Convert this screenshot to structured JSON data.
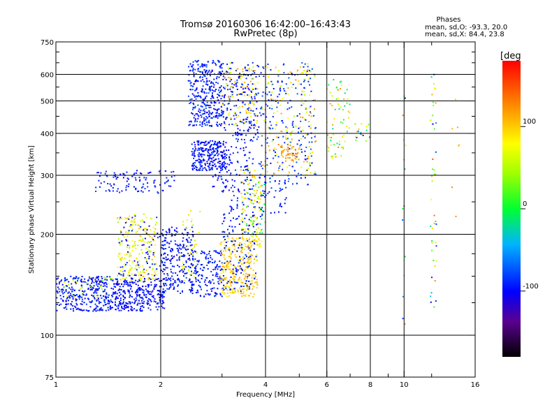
{
  "chart_data": {
    "type": "scatter",
    "title": "Tromsø 20160306 16:42:00–16:43:43",
    "subtitle": "RwPretec (8p)",
    "xlabel": "Frequency [MHz]",
    "ylabel": "Stationary phase Virtual Height [km]",
    "x_scale": "log",
    "y_scale": "log",
    "xlim": [
      1,
      16
    ],
    "ylim": [
      75,
      750
    ],
    "x_ticks": [
      1,
      2,
      4,
      6,
      8,
      10,
      16
    ],
    "x_ticks_all": [
      1,
      2,
      3,
      4,
      5,
      6,
      7,
      8,
      9,
      10,
      12,
      16
    ],
    "y_ticks": [
      75,
      100,
      200,
      300,
      400,
      500,
      600,
      750
    ],
    "y_ticks_all": [
      75,
      100,
      125,
      150,
      175,
      200,
      250,
      300,
      350,
      400,
      450,
      500,
      550,
      600,
      650,
      700,
      750
    ],
    "grid_x": [
      2,
      4,
      6,
      8,
      10
    ],
    "grid_y": [
      100,
      200,
      300,
      400,
      500,
      600
    ],
    "legend": {
      "heading": "Phases",
      "line1": "mean, sd,O: -93.3, 20.0",
      "line2": "mean, sd,X:  84.4, 23.8"
    },
    "colorbar": {
      "label": "[deg",
      "range": [
        -180,
        180
      ],
      "ticks": [
        100,
        0,
        -100
      ]
    },
    "clusters": [
      {
        "f": [
          1.0,
          1.45
        ],
        "h": [
          118,
          150
        ],
        "phase": [
          -110,
          -80
        ],
        "n": 320
      },
      {
        "f": [
          1.45,
          2.05
        ],
        "h": [
          118,
          148
        ],
        "phase": [
          -110,
          -85
        ],
        "n": 330
      },
      {
        "f": [
          1.05,
          1.45
        ],
        "h": [
          128,
          150
        ],
        "phase": [
          20,
          80
        ],
        "n": 30
      },
      {
        "f": [
          1.5,
          1.95
        ],
        "h": [
          145,
          230
        ],
        "phase": [
          40,
          110
        ],
        "n": 200
      },
      {
        "f": [
          1.5,
          2.0
        ],
        "h": [
          150,
          230
        ],
        "phase": [
          -120,
          -80
        ],
        "n": 70
      },
      {
        "f": [
          2.0,
          2.5
        ],
        "h": [
          132,
          210
        ],
        "phase": [
          -110,
          -80
        ],
        "n": 260
      },
      {
        "f": [
          2.25,
          2.6
        ],
        "h": [
          145,
          240
        ],
        "phase": [
          50,
          100
        ],
        "n": 40
      },
      {
        "f": [
          2.45,
          3.0
        ],
        "h": [
          130,
          180
        ],
        "phase": [
          -105,
          -80
        ],
        "n": 160
      },
      {
        "f": [
          2.95,
          3.8
        ],
        "h": [
          130,
          195
        ],
        "phase": [
          80,
          115
        ],
        "n": 280
      },
      {
        "f": [
          3.0,
          3.8
        ],
        "h": [
          135,
          270
        ],
        "phase": [
          -105,
          -80
        ],
        "n": 170
      },
      {
        "f": [
          3.4,
          3.9
        ],
        "h": [
          180,
          320
        ],
        "phase": [
          50,
          110
        ],
        "n": 110
      },
      {
        "f": [
          3.5,
          4.0
        ],
        "h": [
          200,
          300
        ],
        "phase": [
          -30,
          30
        ],
        "n": 30
      },
      {
        "f": [
          1.3,
          2.2
        ],
        "h": [
          265,
          310
        ],
        "phase": [
          -105,
          -80
        ],
        "n": 110
      },
      {
        "f": [
          2.45,
          3.1
        ],
        "h": [
          310,
          380
        ],
        "phase": [
          -110,
          -80
        ],
        "n": 240
      },
      {
        "f": [
          2.4,
          3.0
        ],
        "h": [
          420,
          660
        ],
        "phase": [
          -110,
          -75
        ],
        "n": 340
      },
      {
        "f": [
          3.0,
          3.8
        ],
        "h": [
          380,
          650
        ],
        "phase": [
          -110,
          -80
        ],
        "n": 200
      },
      {
        "f": [
          3.0,
          3.8
        ],
        "h": [
          420,
          650
        ],
        "phase": [
          50,
          120
        ],
        "n": 90
      },
      {
        "f": [
          2.8,
          3.7
        ],
        "h": [
          270,
          380
        ],
        "phase": [
          -110,
          -80
        ],
        "n": 120
      },
      {
        "f": [
          3.8,
          5.6
        ],
        "h": [
          280,
          650
        ],
        "phase": [
          -100,
          -70
        ],
        "n": 210
      },
      {
        "f": [
          3.9,
          5.6
        ],
        "h": [
          300,
          650
        ],
        "phase": [
          40,
          130
        ],
        "n": 150
      },
      {
        "f": [
          4.4,
          5.0
        ],
        "h": [
          330,
          370
        ],
        "phase": [
          100,
          140
        ],
        "n": 50
      },
      {
        "f": [
          3.8,
          4.6
        ],
        "h": [
          225,
          290
        ],
        "phase": [
          -110,
          -80
        ],
        "n": 40
      },
      {
        "f": [
          6.0,
          7.0
        ],
        "h": [
          330,
          580
        ],
        "phase": [
          -30,
          130
        ],
        "n": 70
      },
      {
        "f": [
          7.0,
          8.0
        ],
        "h": [
          370,
          430
        ],
        "phase": [
          -100,
          120
        ],
        "n": 18
      },
      {
        "f": [
          11.9,
          12.4
        ],
        "h": [
          110,
          640
        ],
        "phase": [
          -105,
          150
        ],
        "n": 45
      },
      {
        "f": [
          9.9,
          10.1
        ],
        "h": [
          95,
          630
        ],
        "phase": [
          -100,
          150
        ],
        "n": 15
      },
      {
        "f": [
          13.0,
          14.5
        ],
        "h": [
          200,
          640
        ],
        "phase": [
          90,
          130
        ],
        "n": 7
      }
    ]
  }
}
